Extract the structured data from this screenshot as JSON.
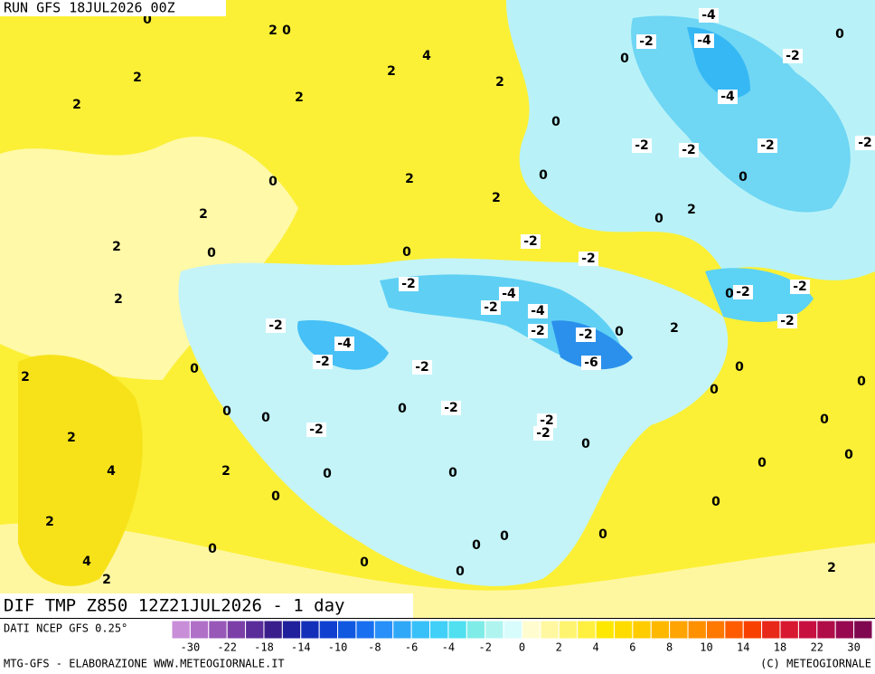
{
  "header": {
    "run": "RUN GFS 18JUL2026 00Z",
    "field": "DIF TMP Z850 12Z21JUL2026 - 1 day",
    "source": "DATI NCEP GFS 0.25°",
    "credit_left": "MTG-GFS - ELABORAZIONE WWW.METEOGIORNALE.IT",
    "credit_right": "(C) METEOGIORNALE"
  },
  "colorbar": {
    "colors": [
      "#c88ed8",
      "#b070c8",
      "#9858b8",
      "#7c3fa8",
      "#5a2d9a",
      "#3a1f8c",
      "#20209c",
      "#1530b8",
      "#1040d0",
      "#1058e0",
      "#1870f0",
      "#2890f8",
      "#30a8f8",
      "#38c0f8",
      "#40d0f8",
      "#50e0f0",
      "#80ece8",
      "#b0f4f0",
      "#d8fcfc",
      "#fffcd0",
      "#fff8a0",
      "#fff470",
      "#fff040",
      "#ffe800",
      "#ffdc00",
      "#ffcc00",
      "#ffb800",
      "#ffa400",
      "#ff9000",
      "#ff7800",
      "#ff5c00",
      "#f84000",
      "#e82818",
      "#d81830",
      "#c81040",
      "#b00c48",
      "#980850",
      "#800850"
    ],
    "labels": [
      "-30",
      "-22",
      "-18",
      "-14",
      "-10",
      "-8",
      "-6",
      "-4",
      "-2",
      "0",
      "2",
      "4",
      "6",
      "8",
      "10",
      "14",
      "18",
      "22",
      "30"
    ]
  },
  "map_labels": [
    "0",
    "2",
    "0",
    "4",
    "2",
    "2",
    "2",
    "2",
    "2",
    "-4",
    "-2",
    "-4",
    "0",
    "0",
    "-2",
    "-4",
    "0",
    "-2",
    "-2",
    "-2",
    "-2",
    "0",
    "2",
    "0",
    "0",
    "2",
    "2",
    "0",
    "2",
    "2",
    "0",
    "0",
    "-2",
    "-2",
    "-2",
    "-4",
    "-2",
    "-4",
    "0",
    "-2",
    "-2",
    "2",
    "-2",
    "-2",
    "-2",
    "0",
    "2",
    "-2",
    "-4",
    "-2",
    "-6",
    "-2",
    "0",
    "0",
    "2",
    "0",
    "0",
    "0",
    "0",
    "0",
    "-2",
    "-2",
    "-2",
    "-2",
    "0",
    "2",
    "0",
    "0",
    "0",
    "4",
    "2",
    "0",
    "0",
    "0",
    "0",
    "2",
    "0",
    "0",
    "0",
    "0",
    "4",
    "0",
    "0",
    "2",
    "2"
  ]
}
